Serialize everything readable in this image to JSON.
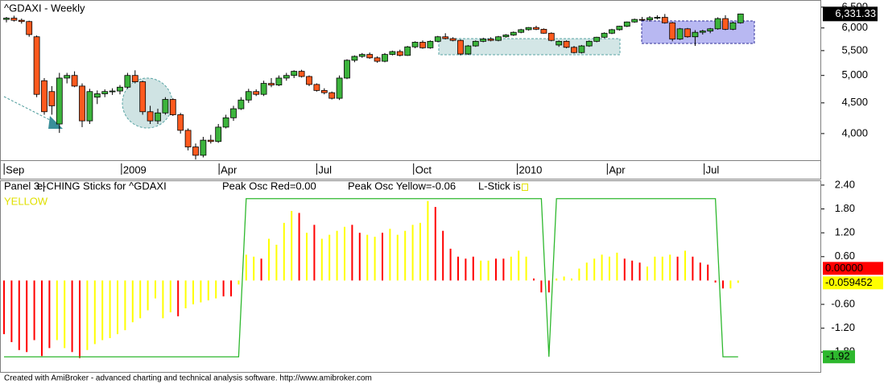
{
  "chart_data": [
    {
      "type": "candlestick",
      "title": "^GDAXI - Weekly",
      "log_scale": true,
      "ylim": [
        3600,
        6680
      ],
      "yticks": [
        {
          "value": 4000,
          "label": "4,000"
        },
        {
          "value": 4500,
          "label": "4,500"
        },
        {
          "value": 5000,
          "label": "5,000"
        },
        {
          "value": 5500,
          "label": "5,500"
        },
        {
          "value": 6000,
          "label": "6,000"
        },
        {
          "value": 6500,
          "label": "6,500"
        }
      ],
      "xlim": [
        -0.85,
        107.66
      ],
      "xticks": [
        {
          "value": -0.3,
          "label": "Sep"
        },
        {
          "value": 15.2,
          "label": "2009"
        },
        {
          "value": 28.1,
          "label": "Apr"
        },
        {
          "value": 41.0,
          "label": "Jul"
        },
        {
          "value": 53.8,
          "label": "Oct"
        },
        {
          "value": 67.5,
          "label": "2010"
        },
        {
          "value": 79.4,
          "label": "Apr"
        },
        {
          "value": 92.2,
          "label": "Jul"
        }
      ],
      "up_color": "#3cb43c",
      "down_color": "#ff5a1e",
      "open": [
        6200,
        6230,
        6180,
        6150,
        5800,
        4900,
        4700,
        4150,
        4950,
        5000,
        4800,
        4200,
        4600,
        4660,
        4700,
        4710,
        4780,
        5000,
        4880,
        4350,
        4200,
        4330,
        4560,
        4300,
        4050,
        3800,
        3680,
        3900,
        3880,
        4100,
        4250,
        4400,
        4550,
        4700,
        4650,
        4850,
        4820,
        4950,
        5000,
        5080,
        4980,
        4830,
        4720,
        4680,
        4580,
        4950,
        5300,
        5380,
        5420,
        5350,
        5280,
        5420,
        5480,
        5400,
        5580,
        5680,
        5560,
        5700,
        5800,
        5760,
        5720,
        5430,
        5600,
        5700,
        5750,
        5720,
        5800,
        5840,
        5900,
        5960,
        6010,
        5970,
        5880,
        5620,
        5700,
        5570,
        5460,
        5600,
        5700,
        5790,
        5880,
        5960,
        6040,
        6140,
        6200,
        6190,
        6240,
        6250,
        6120,
        5750,
        5980,
        5800,
        5900,
        5930,
        5980,
        6220,
        5970,
        6120
      ],
      "high": [
        6260,
        6290,
        6220,
        6170,
        5830,
        4950,
        4800,
        5050,
        5050,
        5080,
        4850,
        4750,
        4720,
        4740,
        4760,
        4820,
        5050,
        5100,
        4900,
        4450,
        4400,
        4600,
        4580,
        4330,
        4080,
        3850,
        3950,
        3980,
        4150,
        4300,
        4450,
        4600,
        4750,
        4740,
        4900,
        4950,
        5000,
        5050,
        5100,
        5110,
        5000,
        4850,
        4760,
        4700,
        5000,
        5320,
        5400,
        5450,
        5460,
        5380,
        5450,
        5500,
        5520,
        5600,
        5700,
        5720,
        5720,
        5820,
        5880,
        5790,
        5740,
        5620,
        5720,
        5780,
        5790,
        5820,
        5860,
        5920,
        5980,
        6020,
        6050,
        5990,
        5900,
        5720,
        5720,
        5600,
        5620,
        5720,
        5800,
        5900,
        5980,
        6050,
        6150,
        6220,
        6260,
        6280,
        6300,
        6330,
        6140,
        6000,
        6000,
        5950,
        5960,
        6000,
        6250,
        6300,
        6150,
        6340
      ],
      "low": [
        6130,
        6150,
        6100,
        5800,
        4600,
        4300,
        4300,
        4010,
        4850,
        4780,
        4100,
        4150,
        4480,
        4600,
        4640,
        4650,
        4750,
        4850,
        4300,
        4150,
        4150,
        4300,
        4280,
        4000,
        3750,
        3620,
        3650,
        3850,
        3860,
        4080,
        4200,
        4380,
        4500,
        4620,
        4620,
        4780,
        4800,
        4900,
        4950,
        4960,
        4800,
        4700,
        4650,
        4560,
        4550,
        4930,
        5260,
        5350,
        5330,
        5250,
        5260,
        5400,
        5380,
        5390,
        5550,
        5540,
        5540,
        5680,
        5740,
        5700,
        5400,
        5410,
        5580,
        5680,
        5700,
        5700,
        5780,
        5820,
        5880,
        5940,
        5950,
        5870,
        5700,
        5580,
        5550,
        5440,
        5440,
        5580,
        5680,
        5770,
        5860,
        5940,
        6020,
        6120,
        6170,
        6150,
        6200,
        6100,
        5700,
        5730,
        5780,
        5600,
        5850,
        5880,
        5960,
        5950,
        5950,
        6100
      ],
      "close": [
        6230,
        6180,
        6150,
        5850,
        4650,
        4350,
        4450,
        4950,
        5000,
        4800,
        4200,
        4700,
        4660,
        4700,
        4710,
        4780,
        5000,
        4880,
        4350,
        4200,
        4330,
        4560,
        4300,
        4050,
        3800,
        3680,
        3900,
        3880,
        4100,
        4250,
        4400,
        4550,
        4700,
        4650,
        4850,
        4820,
        4950,
        5000,
        5080,
        4980,
        4830,
        4720,
        4680,
        4580,
        4950,
        5300,
        5380,
        5420,
        5350,
        5280,
        5420,
        5480,
        5400,
        5580,
        5680,
        5560,
        5700,
        5800,
        5760,
        5720,
        5430,
        5600,
        5700,
        5750,
        5720,
        5800,
        5840,
        5900,
        5960,
        6010,
        5970,
        5880,
        5720,
        5700,
        5570,
        5460,
        5600,
        5700,
        5790,
        5880,
        5960,
        6040,
        6140,
        6200,
        6190,
        6240,
        6250,
        6120,
        5750,
        5980,
        5800,
        5900,
        5930,
        5980,
        6220,
        5970,
        6120,
        6331.33
      ],
      "last_label": "6,331.33"
    },
    {
      "type": "bar",
      "panel_label": "Panel 3 |",
      "title": "e-CHING Sticks for ^GDAXI",
      "peak_red": "Peak Osc Red=0.00",
      "peak_yellow": "Peak Osc Yellow=-0.06",
      "lstick_label": "L-Stick is",
      "lstick_state": "YELLOW",
      "xlim": [
        -0.85,
        107.66
      ],
      "ylim": [
        -2.3,
        2.52
      ],
      "yticks": [
        {
          "value": 2.4,
          "label": "2.40"
        },
        {
          "value": 1.8,
          "label": "1.80"
        },
        {
          "value": 1.2,
          "label": "1.20"
        },
        {
          "value": 0.6,
          "label": "0.60"
        },
        {
          "value": -0.6,
          "label": "-0.60"
        },
        {
          "value": -1.2,
          "label": "-1.20"
        },
        {
          "value": -1.8,
          "label": "-1.80"
        }
      ],
      "values": [
        -1.35,
        -1.55,
        -1.75,
        -1.8,
        -1.5,
        -1.9,
        -1.7,
        -1.5,
        -1.7,
        -1.8,
        -1.95,
        -1.75,
        -1.6,
        -1.5,
        -1.45,
        -1.35,
        -1.25,
        -1.05,
        -0.95,
        -0.75,
        -0.45,
        -0.95,
        -0.8,
        -0.9,
        -0.7,
        -0.6,
        -0.55,
        -0.5,
        -0.45,
        -0.4,
        -0.4,
        -0.1,
        0.65,
        0.6,
        0.55,
        1.05,
        0.9,
        1.45,
        1.75,
        1.7,
        1.2,
        1.4,
        1.05,
        1.15,
        1.25,
        1.35,
        1.4,
        1.2,
        1.15,
        1.1,
        1.2,
        1.3,
        1.15,
        1.25,
        1.4,
        1.45,
        2.0,
        1.85,
        1.25,
        0.8,
        0.6,
        0.55,
        0.6,
        0.5,
        0.5,
        0.55,
        0.55,
        0.6,
        0.75,
        0.6,
        0.05,
        -0.3,
        -0.3,
        0.05,
        0.1,
        0.05,
        0.3,
        0.45,
        0.55,
        0.65,
        0.6,
        0.7,
        0.55,
        0.5,
        0.45,
        0.35,
        0.6,
        0.6,
        0.65,
        0.6,
        0.75,
        0.6,
        0.45,
        0.4,
        -0.05,
        -0.2,
        -0.2,
        -0.059452
      ],
      "bar_colors": [
        "red",
        "red",
        "red",
        "red",
        "red",
        "red",
        "red",
        "yellow",
        "yellow",
        "red",
        "red",
        "yellow",
        "yellow",
        "yellow",
        "yellow",
        "yellow",
        "yellow",
        "yellow",
        "yellow",
        "yellow",
        "yellow",
        "yellow",
        "yellow",
        "red",
        "yellow",
        "yellow",
        "yellow",
        "yellow",
        "yellow",
        "red",
        "red",
        "yellow",
        "yellow",
        "yellow",
        "red",
        "yellow",
        "yellow",
        "yellow",
        "yellow",
        "red",
        "yellow",
        "red",
        "yellow",
        "yellow",
        "yellow",
        "yellow",
        "red",
        "red",
        "yellow",
        "yellow",
        "red",
        "yellow",
        "yellow",
        "yellow",
        "yellow",
        "yellow",
        "yellow",
        "red",
        "red",
        "red",
        "red",
        "red",
        "red",
        "yellow",
        "yellow",
        "red",
        "red",
        "yellow",
        "yellow",
        "yellow",
        "red",
        "red",
        "red",
        "yellow",
        "yellow",
        "yellow",
        "yellow",
        "yellow",
        "yellow",
        "yellow",
        "yellow",
        "yellow",
        "red",
        "red",
        "red",
        "yellow",
        "yellow",
        "yellow",
        "yellow",
        "red",
        "yellow",
        "red",
        "red",
        "red",
        "red",
        "red",
        "yellow",
        "yellow"
      ],
      "last_value_labels": [
        {
          "value": 0,
          "label": "0.00000",
          "color": "red"
        },
        {
          "value": -0.059452,
          "label": "-0.059452",
          "color": "yellow"
        }
      ],
      "line": {
        "color": "#2eb82e",
        "last_label": "-1.92",
        "values": [
          -1.92,
          -1.92,
          -1.92,
          -1.92,
          -1.92,
          -1.92,
          -1.92,
          -1.92,
          -1.92,
          -1.92,
          -1.92,
          -1.92,
          -1.92,
          -1.92,
          -1.92,
          -1.92,
          -1.92,
          -1.92,
          -1.92,
          -1.92,
          -1.92,
          -1.92,
          -1.92,
          -1.92,
          -1.92,
          -1.92,
          -1.92,
          -1.92,
          -1.92,
          -1.92,
          -1.92,
          -1.92,
          2.06,
          2.06,
          2.06,
          2.06,
          2.06,
          2.06,
          2.06,
          2.06,
          2.06,
          2.06,
          2.06,
          2.06,
          2.06,
          2.06,
          2.06,
          2.06,
          2.06,
          2.06,
          2.06,
          2.06,
          2.06,
          2.06,
          2.06,
          2.06,
          2.06,
          2.06,
          2.06,
          2.06,
          2.06,
          2.06,
          2.06,
          2.06,
          2.06,
          2.06,
          2.06,
          2.06,
          2.06,
          2.06,
          2.06,
          2.06,
          -1.92,
          2.06,
          2.06,
          2.06,
          2.06,
          2.06,
          2.06,
          2.06,
          2.06,
          2.06,
          2.06,
          2.06,
          2.06,
          2.06,
          2.06,
          2.06,
          2.06,
          2.06,
          2.06,
          2.06,
          2.06,
          2.06,
          2.06,
          -1.92,
          -1.92,
          -1.92
        ]
      }
    },
    {
      "type": "note",
      "footer": "Created with AmiBroker - advanced charting and technical analysis software. http://www.amibroker.com"
    }
  ]
}
